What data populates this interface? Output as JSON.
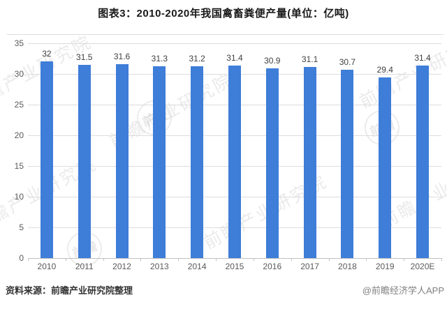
{
  "title": "图表3：2010-2020年我国禽畜粪便产量(单位：亿吨)",
  "chart_data": {
    "type": "bar",
    "title": "图表3：2010-2020年我国禽畜粪便产量(单位：亿吨)",
    "categories": [
      "2010",
      "2011",
      "2012",
      "2013",
      "2014",
      "2015",
      "2016",
      "2017",
      "2018",
      "2019",
      "2020E"
    ],
    "values": [
      32,
      31.5,
      31.6,
      31.3,
      31.2,
      31.4,
      30.9,
      31.1,
      30.7,
      29.4,
      31.4
    ],
    "xlabel": "",
    "ylabel": "",
    "ylim": [
      0,
      35
    ],
    "ytick_step": 5,
    "ytick_labels": [
      "0",
      "5",
      "10",
      "15",
      "20",
      "25",
      "30",
      "35"
    ],
    "grid": true,
    "legend": "none",
    "bar_color": "#3e7dd8"
  },
  "footer": {
    "source": "资料来源：前瞻产业研究院整理",
    "credit": "@前瞻经济学人APP"
  },
  "watermark": {
    "text": "前瞻产业研究院",
    "seal_text": "前瞻"
  },
  "colors": {
    "bar": "#3e7dd8",
    "grid": "#dcdcdc",
    "axis": "#c0c0c0",
    "tick_label": "#595959",
    "value_label": "#404040",
    "title": "#1a1a1a",
    "source": "#333333",
    "credit": "#808080",
    "watermark": "#cfcfcf"
  }
}
